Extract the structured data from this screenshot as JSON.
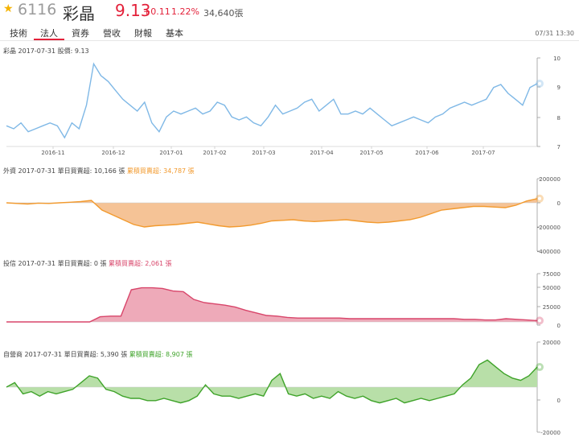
{
  "header": {
    "star_icon": "star-icon",
    "code": "6116",
    "name": "彩晶",
    "price": "9.13",
    "change": "+0.11",
    "change_pct": "1.22%",
    "volume": "34,640張",
    "datetime": "07/31 13:30"
  },
  "tabs": [
    {
      "label": "技術",
      "active": false
    },
    {
      "label": "法人",
      "active": true
    },
    {
      "label": "資券",
      "active": false
    },
    {
      "label": "營收",
      "active": false
    },
    {
      "label": "財報",
      "active": false
    },
    {
      "label": "基本",
      "active": false
    }
  ],
  "colors": {
    "up": "#e3213a",
    "price_line": "#7fb8e6",
    "foreign": "#f29a2e",
    "trust": "#d8456a",
    "dealer": "#3fa32a"
  },
  "chart_data": [
    {
      "type": "line",
      "legend_prefix": "彩晶 2017-07-31 ",
      "legend_items": [
        "股價: 9.13"
      ],
      "x_ticks": [
        "2016-11",
        "2016-12",
        "2017-01",
        "2017-02",
        "2017-03",
        "2017-04",
        "2017-05",
        "2017-06",
        "2017-07"
      ],
      "y_ticks": [
        "10",
        "9",
        "8",
        "7"
      ],
      "ylim": [
        7,
        10
      ],
      "last_value": 9.13,
      "values": [
        7.7,
        7.6,
        7.8,
        7.5,
        7.6,
        7.7,
        7.8,
        7.7,
        7.3,
        7.8,
        7.6,
        8.4,
        9.8,
        9.4,
        9.2,
        8.9,
        8.6,
        8.4,
        8.2,
        8.5,
        7.8,
        7.5,
        8.0,
        8.2,
        8.1,
        8.2,
        8.3,
        8.1,
        8.2,
        8.5,
        8.4,
        8.0,
        7.9,
        8.0,
        7.8,
        7.7,
        8.0,
        8.4,
        8.1,
        8.2,
        8.3,
        8.5,
        8.6,
        8.2,
        8.4,
        8.6,
        8.1,
        8.1,
        8.2,
        8.1,
        8.3,
        8.1,
        7.9,
        7.7,
        7.8,
        7.9,
        8.0,
        7.9,
        7.8,
        8.0,
        8.1,
        8.3,
        8.4,
        8.5,
        8.4,
        8.5,
        8.6,
        9.0,
        9.1,
        8.8,
        8.6,
        8.4,
        9.0,
        9.13
      ]
    },
    {
      "type": "area",
      "legend_prefix": "外資 2017-07-31 ",
      "legend_items": [
        "單日買賣超: 10,166 張",
        "累積買賣超: 34,787 張"
      ],
      "y_ticks": [
        "200000",
        "0",
        "-200000",
        "-400000"
      ],
      "ylim": [
        -400000,
        200000
      ],
      "last_value": 34787,
      "values": [
        0,
        -5000,
        -10000,
        -3000,
        -5000,
        0,
        5000,
        10000,
        20000,
        -60000,
        -100000,
        -140000,
        -180000,
        -200000,
        -190000,
        -185000,
        -180000,
        -170000,
        -160000,
        -175000,
        -190000,
        -200000,
        -195000,
        -185000,
        -170000,
        -150000,
        -145000,
        -140000,
        -150000,
        -155000,
        -150000,
        -145000,
        -140000,
        -150000,
        -160000,
        -165000,
        -160000,
        -150000,
        -140000,
        -120000,
        -90000,
        -60000,
        -50000,
        -40000,
        -30000,
        -30000,
        -35000,
        -40000,
        -20000,
        15000,
        34787
      ]
    },
    {
      "type": "area",
      "legend_prefix": "投信 2017-07-31 ",
      "legend_items": [
        "單日買賣超: 0 張",
        "累積買賣超: 2,061 張"
      ],
      "y_ticks": [
        "75000",
        "50000",
        "25000",
        "0"
      ],
      "ylim": [
        -5000,
        75000
      ],
      "last_value": 2061,
      "values": [
        0,
        0,
        0,
        0,
        0,
        0,
        0,
        0,
        0,
        8000,
        9000,
        9000,
        50000,
        53000,
        53000,
        52000,
        48000,
        47000,
        35000,
        30000,
        28000,
        26000,
        23000,
        18000,
        14000,
        10000,
        9000,
        7000,
        6000,
        6000,
        6000,
        6000,
        6000,
        5000,
        5000,
        5000,
        5000,
        5000,
        5000,
        5000,
        5000,
        5000,
        5000,
        5000,
        4000,
        4000,
        3000,
        3000,
        5000,
        4000,
        3000,
        2061
      ]
    },
    {
      "type": "area",
      "legend_prefix": "自營商 2017-07-31 ",
      "legend_items": [
        "單日買賣超: 5,390 張",
        "累積買賣超: 8,907 張"
      ],
      "y_ticks": [
        "20000",
        "0",
        "-20000"
      ],
      "ylim": [
        -20000,
        20000
      ],
      "last_value": 8907,
      "values": [
        0,
        2000,
        -3000,
        -2000,
        -4000,
        -2000,
        -3000,
        -2000,
        -1000,
        2000,
        5000,
        4000,
        -1000,
        -2000,
        -4000,
        -5000,
        -5000,
        -6000,
        -6000,
        -5000,
        -6000,
        -7000,
        -6000,
        -4000,
        1000,
        -3000,
        -4000,
        -4000,
        -5000,
        -4000,
        -3000,
        -4000,
        3000,
        6000,
        -3000,
        -4000,
        -3000,
        -5000,
        -4000,
        -5000,
        -2000,
        -4000,
        -5000,
        -4000,
        -6000,
        -7000,
        -6000,
        -5000,
        -7000,
        -6000,
        -5000,
        -6000,
        -5000,
        -4000,
        -3000,
        1000,
        4000,
        10000,
        12000,
        9000,
        6000,
        4000,
        3000,
        5000,
        8907
      ]
    }
  ]
}
